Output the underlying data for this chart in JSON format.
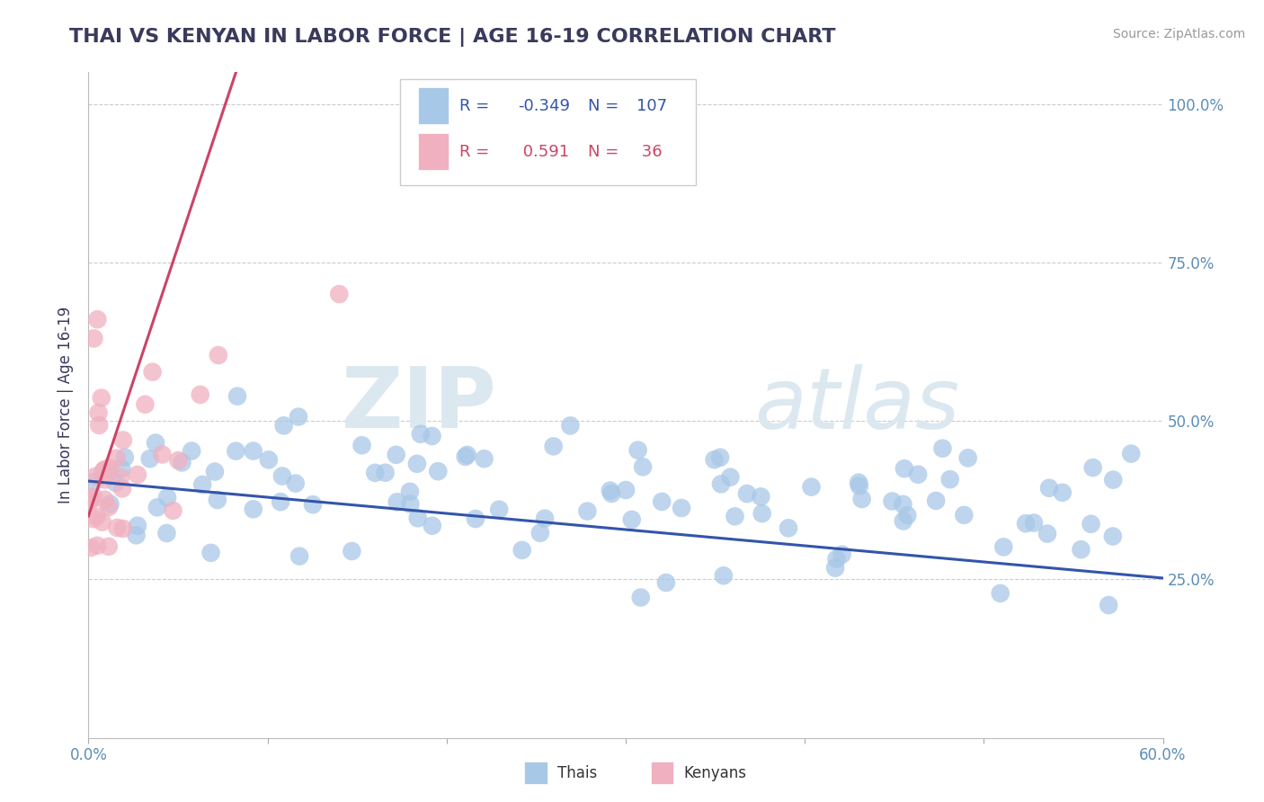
{
  "title": "THAI VS KENYAN IN LABOR FORCE | AGE 16-19 CORRELATION CHART",
  "source_text": "Source: ZipAtlas.com",
  "ylabel": "In Labor Force | Age 16-19",
  "xlim": [
    0.0,
    0.6
  ],
  "ylim": [
    0.0,
    1.05
  ],
  "title_color": "#3a3a5c",
  "title_fontsize": 16,
  "axis_label_color": "#3a3a5c",
  "tick_color": "#5b8db8",
  "grid_color": "#cccccc",
  "background_color": "#ffffff",
  "watermark_color": "#dce8f0",
  "legend_R_thai": "-0.349",
  "legend_N_thai": "107",
  "legend_R_kenyan": " 0.591",
  "legend_N_kenyan": " 36",
  "thai_color": "#a8c8e8",
  "kenyan_color": "#f0b0c0",
  "thai_line_color": "#3355aa",
  "kenyan_line_color": "#cc4466",
  "figsize": [
    14.06,
    8.92
  ],
  "dpi": 100
}
